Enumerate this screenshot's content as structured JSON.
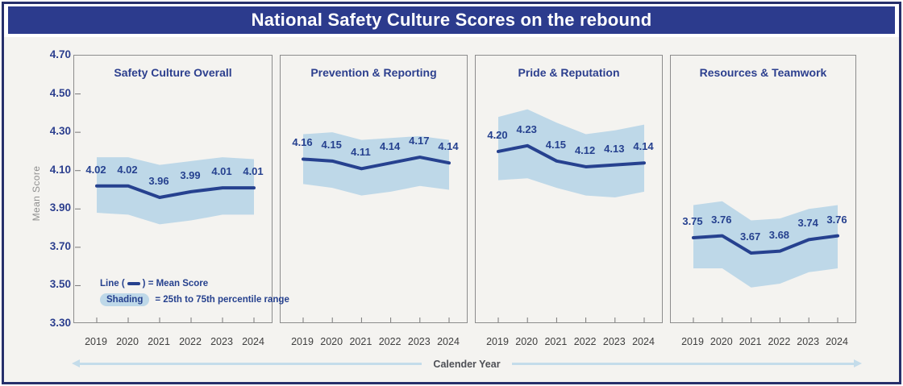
{
  "header": {
    "title": "National Safety Culture Scores on the rebound"
  },
  "y_axis": {
    "label": "Mean Score",
    "ticks": [
      "4.70",
      "4.50",
      "4.30",
      "4.10",
      "3.90",
      "3.70",
      "3.50",
      "3.30"
    ]
  },
  "x_axis": {
    "label": "Calender Year",
    "years": [
      "2019",
      "2020",
      "2021",
      "2022",
      "2023",
      "2024"
    ]
  },
  "legend": {
    "line_prefix": "Line (",
    "line_suffix": ") = Mean Score",
    "shading_label": "Shading",
    "shading_suffix": "= 25th to 75th percentile range"
  },
  "colors": {
    "header_bg": "#2c3b8d",
    "frame_border": "#262f6b",
    "content_bg": "#f4f3f0",
    "line": "#26418f",
    "navy_text": "#2c3f8e",
    "band": "#bed8e8",
    "arrow": "#c4dcea",
    "year_label": "#3f3f3f",
    "axis_gray": "#8f8f8f",
    "panel_border": "#8c8c8c"
  },
  "chart_data": {
    "type": "line",
    "title": "National Safety Culture Scores on the rebound",
    "xlabel": "Calender Year",
    "ylabel": "Mean Score",
    "x": [
      2019,
      2020,
      2021,
      2022,
      2023,
      2024
    ],
    "ylim": [
      3.3,
      4.7
    ],
    "y_ticks": [
      4.7,
      4.5,
      4.3,
      4.1,
      3.9,
      3.7,
      3.5,
      3.3
    ],
    "line_meaning": "Mean Score",
    "band_meaning": "25th to 75th percentile range",
    "legend_position": "bottom-left of first panel",
    "grid": false,
    "panels": [
      {
        "title": "Safety Culture Overall",
        "mean": [
          4.02,
          4.02,
          3.96,
          3.99,
          4.01,
          4.01
        ],
        "band_upper": [
          4.17,
          4.17,
          4.13,
          4.15,
          4.17,
          4.16
        ],
        "band_lower": [
          3.88,
          3.87,
          3.82,
          3.84,
          3.87,
          3.87
        ]
      },
      {
        "title": "Prevention & Reporting",
        "mean": [
          4.16,
          4.15,
          4.11,
          4.14,
          4.17,
          4.14
        ],
        "band_upper": [
          4.29,
          4.3,
          4.26,
          4.27,
          4.28,
          4.26
        ],
        "band_lower": [
          4.03,
          4.01,
          3.97,
          3.99,
          4.02,
          4.0
        ]
      },
      {
        "title": "Pride & Reputation",
        "mean": [
          4.2,
          4.23,
          4.15,
          4.12,
          4.13,
          4.14
        ],
        "band_upper": [
          4.38,
          4.42,
          4.35,
          4.29,
          4.31,
          4.34
        ],
        "band_lower": [
          4.05,
          4.06,
          4.01,
          3.97,
          3.96,
          3.99
        ]
      },
      {
        "title": "Resources & Teamwork",
        "mean": [
          3.75,
          3.76,
          3.67,
          3.68,
          3.74,
          3.76
        ],
        "band_upper": [
          3.92,
          3.94,
          3.84,
          3.85,
          3.9,
          3.92
        ],
        "band_lower": [
          3.59,
          3.59,
          3.49,
          3.51,
          3.57,
          3.59
        ]
      }
    ]
  }
}
